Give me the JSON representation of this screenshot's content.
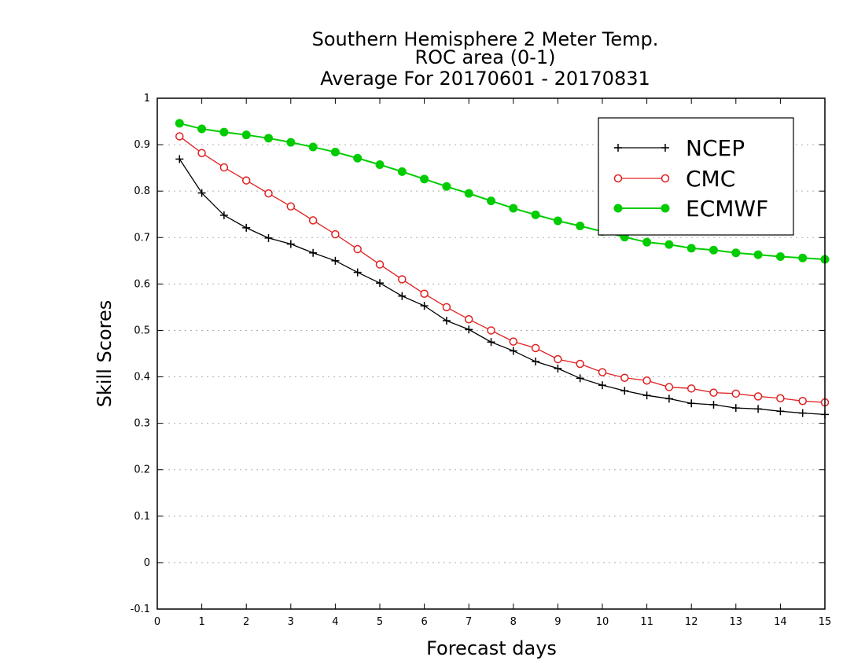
{
  "chart_data": {
    "type": "line",
    "title_lines": [
      "Southern Hemisphere 2 Meter Temp.",
      "ROC area (0-1)",
      "Average For 20170601 - 20170831"
    ],
    "xlabel": "Forecast days",
    "ylabel": "Skill Scores",
    "xlim": [
      0,
      15
    ],
    "ylim": [
      -0.1,
      1
    ],
    "x_ticks": [
      "0",
      "1",
      "2",
      "3",
      "4",
      "5",
      "6",
      "7",
      "8",
      "9",
      "10",
      "11",
      "12",
      "13",
      "14",
      "15"
    ],
    "y_ticks": [
      "-0.1",
      "0",
      "0.1",
      "0.2",
      "0.3",
      "0.4",
      "0.5",
      "0.6",
      "0.7",
      "0.8",
      "0.9",
      "1"
    ],
    "grid": "horizontal dotted",
    "legend_position": "top-right",
    "x": [
      0.5,
      1,
      1.5,
      2,
      2.5,
      3,
      3.5,
      4,
      4.5,
      5,
      5.5,
      6,
      6.5,
      7,
      7.5,
      8,
      8.5,
      9,
      9.5,
      10,
      10.5,
      11,
      11.5,
      12,
      12.5,
      13,
      13.5,
      14,
      14.5,
      15
    ],
    "series": [
      {
        "name": "NCEP",
        "color": "#000000",
        "marker": "plus",
        "values": [
          0.869,
          0.796,
          0.748,
          0.721,
          0.699,
          0.686,
          0.667,
          0.65,
          0.625,
          0.602,
          0.574,
          0.553,
          0.521,
          0.502,
          0.475,
          0.456,
          0.433,
          0.418,
          0.397,
          0.382,
          0.37,
          0.36,
          0.353,
          0.343,
          0.34,
          0.333,
          0.331,
          0.326,
          0.322,
          0.319
        ]
      },
      {
        "name": "CMC",
        "color": "#e02020",
        "marker": "open-circle",
        "values": [
          0.918,
          0.882,
          0.851,
          0.823,
          0.795,
          0.767,
          0.737,
          0.707,
          0.675,
          0.642,
          0.61,
          0.579,
          0.55,
          0.524,
          0.5,
          0.476,
          0.462,
          0.438,
          0.428,
          0.41,
          0.398,
          0.392,
          0.378,
          0.375,
          0.366,
          0.364,
          0.358,
          0.354,
          0.348,
          0.345
        ]
      },
      {
        "name": "ECMWF",
        "color": "#00cc00",
        "marker": "filled-circle",
        "values": [
          0.946,
          0.934,
          0.927,
          0.921,
          0.914,
          0.905,
          0.895,
          0.884,
          0.871,
          0.857,
          0.842,
          0.826,
          0.81,
          0.795,
          0.779,
          0.763,
          0.749,
          0.736,
          0.725,
          0.713,
          0.701,
          0.69,
          0.685,
          0.677,
          0.673,
          0.667,
          0.663,
          0.659,
          0.656,
          0.653
        ]
      }
    ]
  }
}
